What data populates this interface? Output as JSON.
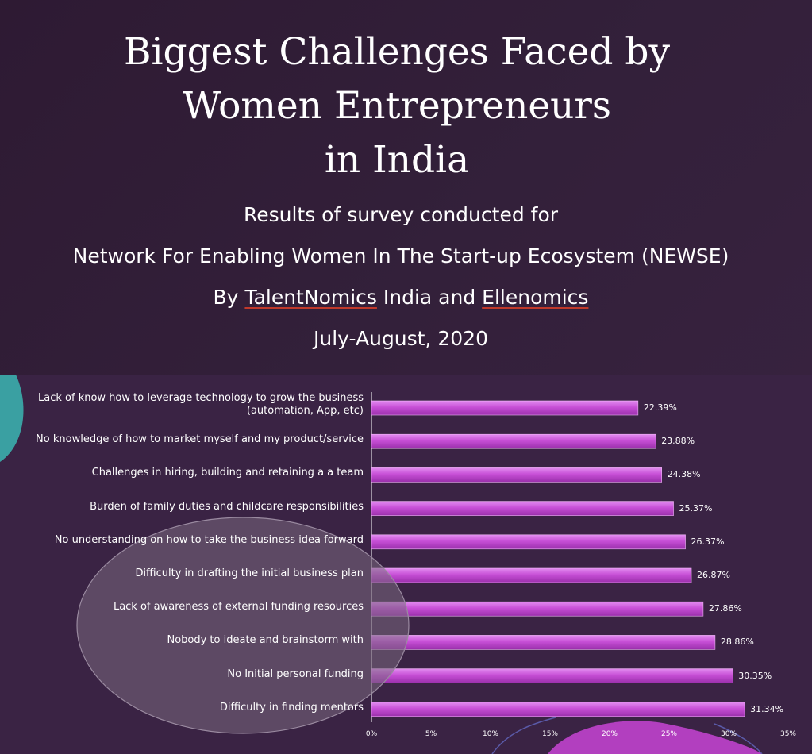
{
  "header": {
    "title_lines": [
      "Biggest Challenges Faced by",
      "Women Entrepreneurs",
      "in India"
    ],
    "subtitle_line1": "Results of survey conducted for",
    "subtitle_line2": "Network For Enabling Women In The Start-up Ecosystem (NEWSE)",
    "by_prefix": "By ",
    "org1": "TalentNomics",
    "middle": " India and ",
    "org2": "Ellenomics",
    "date": "July-August, 2020"
  },
  "colors": {
    "background": "#2e1a33",
    "chart_background": "#3a2344",
    "bar": "#c74fd6",
    "bar_highlight": "#e28cf0",
    "axis": "#ffffff",
    "teal_accent": "#3aa8a8",
    "oval_fill": "#6e5a72",
    "magenta_accent": "#b23fbf"
  },
  "chart_data": {
    "type": "bar",
    "orientation": "horizontal",
    "categories": [
      "Lack of know how to leverage technology to grow the business (automation, App, etc)",
      "No knowledge of how to market myself and my product/service",
      "Challenges in hiring, building and retaining a a team",
      "Burden of family duties and childcare responsibilities",
      "No understanding on how to take the business idea forward",
      "Difficulty in drafting the initial business plan",
      "Lack of awareness of external funding resources",
      "Nobody to ideate and brainstorm with",
      "No Initial personal funding",
      "Difficulty in finding mentors"
    ],
    "category_lines": [
      [
        "Lack of know how to leverage technology to grow the business",
        "(automation, App, etc)"
      ],
      [
        "No knowledge of how to market myself and my product/service"
      ],
      [
        "Challenges in hiring, building and retaining a a team"
      ],
      [
        "Burden of family duties and childcare responsibilities"
      ],
      [
        "No understanding on how to take the business idea forward"
      ],
      [
        "Difficulty in drafting the initial business plan"
      ],
      [
        "Lack of awareness of external funding resources"
      ],
      [
        "Nobody to ideate and brainstorm with"
      ],
      [
        "No Initial personal funding"
      ],
      [
        "Difficulty in finding mentors"
      ]
    ],
    "values": [
      22.39,
      23.88,
      24.38,
      25.37,
      26.37,
      26.87,
      27.86,
      28.86,
      30.35,
      31.34
    ],
    "value_labels": [
      "22.39%",
      "23.88%",
      "24.38%",
      "25.37%",
      "26.37%",
      "26.87%",
      "27.86%",
      "28.86%",
      "30.35%",
      "31.34%"
    ],
    "xlim": [
      0,
      35
    ],
    "x_ticks": [
      0,
      5,
      10,
      15,
      20,
      25,
      30,
      35
    ],
    "x_tick_labels": [
      "0%",
      "5%",
      "10%",
      "15%",
      "20%",
      "25%",
      "30%",
      "35%"
    ],
    "grid": false,
    "legend": "none"
  }
}
